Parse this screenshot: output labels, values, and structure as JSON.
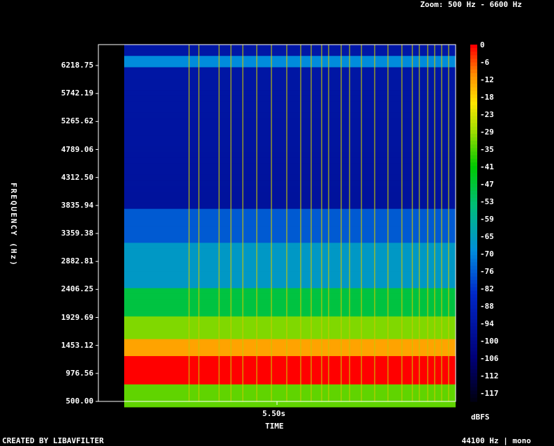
{
  "header": {
    "zoom_text": "Zoom: 500 Hz - 6600 Hz"
  },
  "footer": {
    "created_by": "CREATED BY LIBAVFILTER",
    "info": "44100 Hz | mono"
  },
  "chart_data": {
    "type": "heatmap",
    "title": "",
    "xlabel": "TIME",
    "ylabel": "FREQUENCY (Hz)",
    "x_ticks": [
      "5.50s"
    ],
    "y_ticks": [
      "6218.75",
      "5742.19",
      "5265.62",
      "4789.06",
      "4312.50",
      "3835.94",
      "3359.38",
      "2882.81",
      "2406.25",
      "1929.69",
      "1453.12",
      "976.56",
      "500.00"
    ],
    "ylim": [
      500,
      6600
    ],
    "colorbar": {
      "unit": "dBFS",
      "ticks": [
        "0",
        "-6",
        "-12",
        "-18",
        "-23",
        "-29",
        "-35",
        "-41",
        "-47",
        "-53",
        "-59",
        "-65",
        "-70",
        "-76",
        "-82",
        "-88",
        "-94",
        "-100",
        "-106",
        "-112",
        "-117"
      ],
      "range": [
        -117,
        0
      ]
    },
    "colors": {
      "hot": "#ff0000",
      "mid": "#00c000",
      "cold": "#0000a0"
    }
  }
}
